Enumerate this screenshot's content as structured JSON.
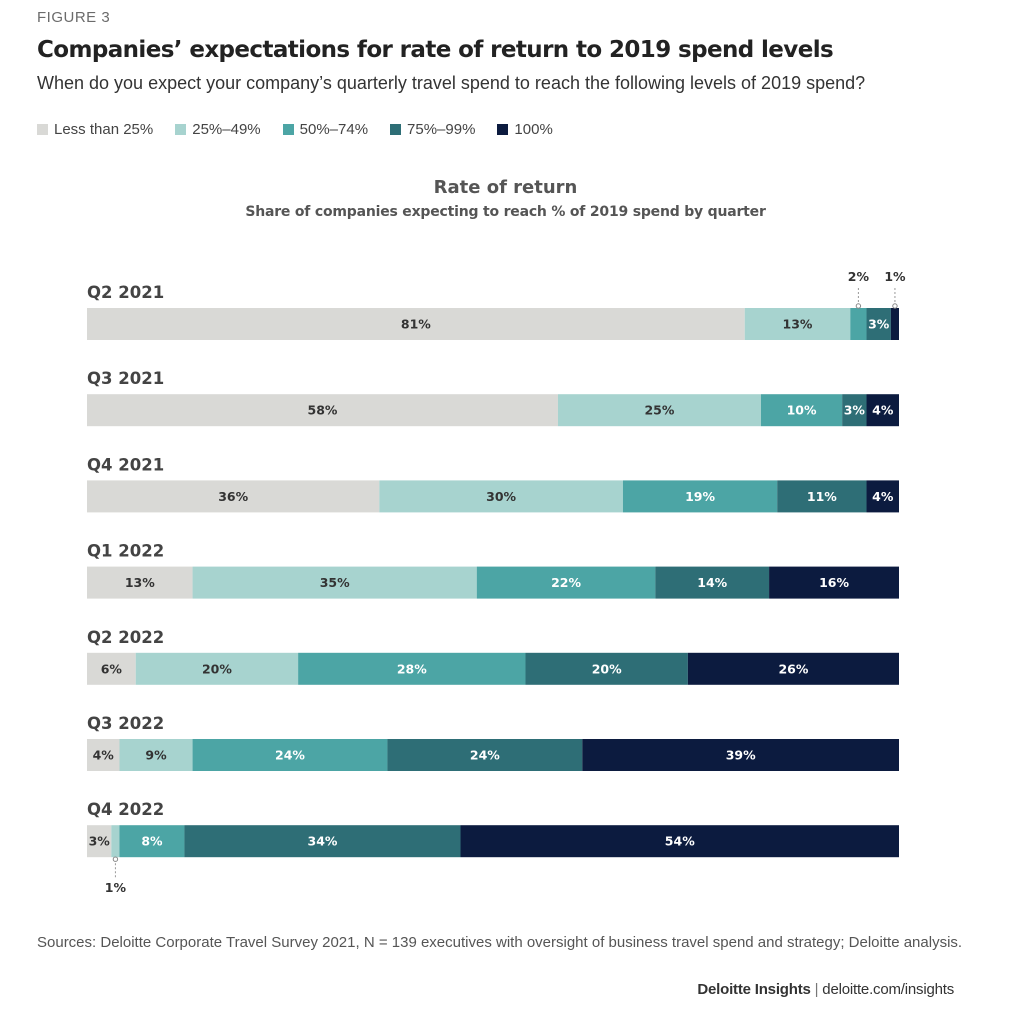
{
  "figure_label": "FIGURE 3",
  "title": "Companies’ expectations for rate of return to 2019 spend levels",
  "subtitle": "When do you expect your company’s quarterly travel spend to reach the following levels of 2019 spend?",
  "legend": [
    {
      "label": "Less than 25%",
      "color": "#d9d9d6",
      "icon": "square-swatch"
    },
    {
      "label": "25%–49%",
      "color": "#a7d3cf",
      "icon": "square-swatch"
    },
    {
      "label": "50%–74%",
      "color": "#4ca5a5",
      "icon": "square-swatch"
    },
    {
      "label": "75%–99%",
      "color": "#2e6e76",
      "icon": "square-swatch"
    },
    {
      "label": "100%",
      "color": "#0c1b3f",
      "icon": "square-swatch"
    }
  ],
  "chart_data": {
    "type": "bar",
    "orientation": "horizontal",
    "stacked": true,
    "title": "Rate of return",
    "subtitle": "Share of companies expecting to reach % of 2019 spend by quarter",
    "categories": [
      "Q2 2021",
      "Q3 2021",
      "Q4 2021",
      "Q1 2022",
      "Q2 2022",
      "Q3 2022",
      "Q4 2022"
    ],
    "series": [
      {
        "name": "Less than 25%",
        "color": "#d9d9d6",
        "values": [
          81,
          58,
          36,
          13,
          6,
          4,
          3
        ]
      },
      {
        "name": "25%–49%",
        "color": "#a7d3cf",
        "values": [
          13,
          25,
          30,
          35,
          20,
          9,
          1
        ]
      },
      {
        "name": "50%–74%",
        "color": "#4ca5a5",
        "values": [
          2,
          10,
          19,
          22,
          28,
          24,
          8
        ]
      },
      {
        "name": "75%–99%",
        "color": "#2e6e76",
        "values": [
          3,
          3,
          11,
          14,
          20,
          24,
          34
        ]
      },
      {
        "name": "100%",
        "color": "#0c1b3f",
        "values": [
          1,
          4,
          4,
          16,
          26,
          39,
          54
        ]
      }
    ],
    "xlim": [
      0,
      100
    ],
    "value_suffix": "%",
    "grid": false,
    "legend_position": "top-left"
  },
  "sources": "Sources: Deloitte Corporate Travel Survey 2021, N = 139 executives with oversight of business travel spend and strategy; Deloitte analysis.",
  "credit": {
    "brand": "Deloitte Insights",
    "separator": "|",
    "site": "deloitte.com/insights"
  }
}
